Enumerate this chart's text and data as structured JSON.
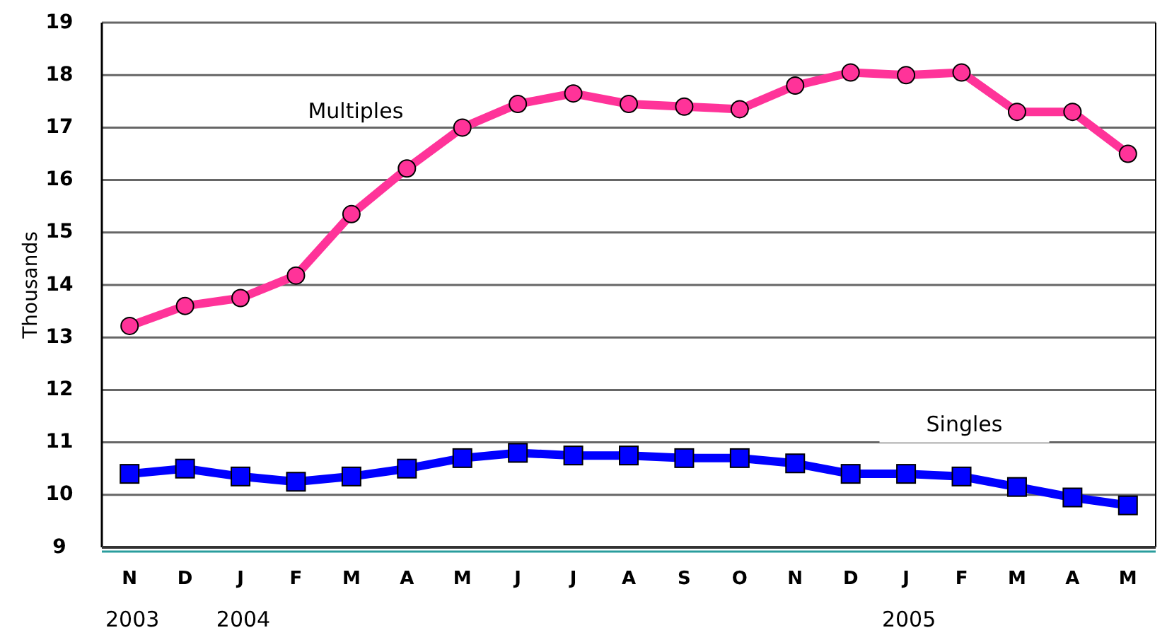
{
  "chart_data": {
    "type": "line",
    "ylabel": "Thousands",
    "categories": [
      "N\n2003",
      "D",
      "J\n2004",
      "F",
      "M",
      "A",
      "M",
      "J",
      "J",
      "A",
      "S",
      "O",
      "N",
      "D",
      "J\n2005",
      "F",
      "M",
      "A",
      "M"
    ],
    "series": [
      {
        "name": "Multiples",
        "color": "#ff3399",
        "values": [
          13.22,
          13.6,
          13.75,
          14.18,
          15.35,
          16.22,
          17.0,
          17.45,
          17.65,
          17.45,
          17.4,
          17.35,
          17.8,
          18.05,
          18.0,
          18.05,
          17.3,
          17.3,
          16.5
        ],
        "marker": "circle"
      },
      {
        "name": "Singles",
        "color": "#0000ff",
        "values": [
          10.4,
          10.5,
          10.35,
          10.25,
          10.35,
          10.5,
          10.7,
          10.8,
          10.75,
          10.75,
          10.7,
          10.7,
          10.6,
          10.4,
          10.4,
          10.35,
          10.15,
          9.95,
          9.8
        ],
        "marker": "square"
      }
    ],
    "ylim": [
      9,
      19
    ],
    "yticks": [
      9,
      10,
      11,
      12,
      13,
      14,
      15,
      16,
      17,
      18,
      19
    ],
    "grid": "y",
    "legend": false
  }
}
